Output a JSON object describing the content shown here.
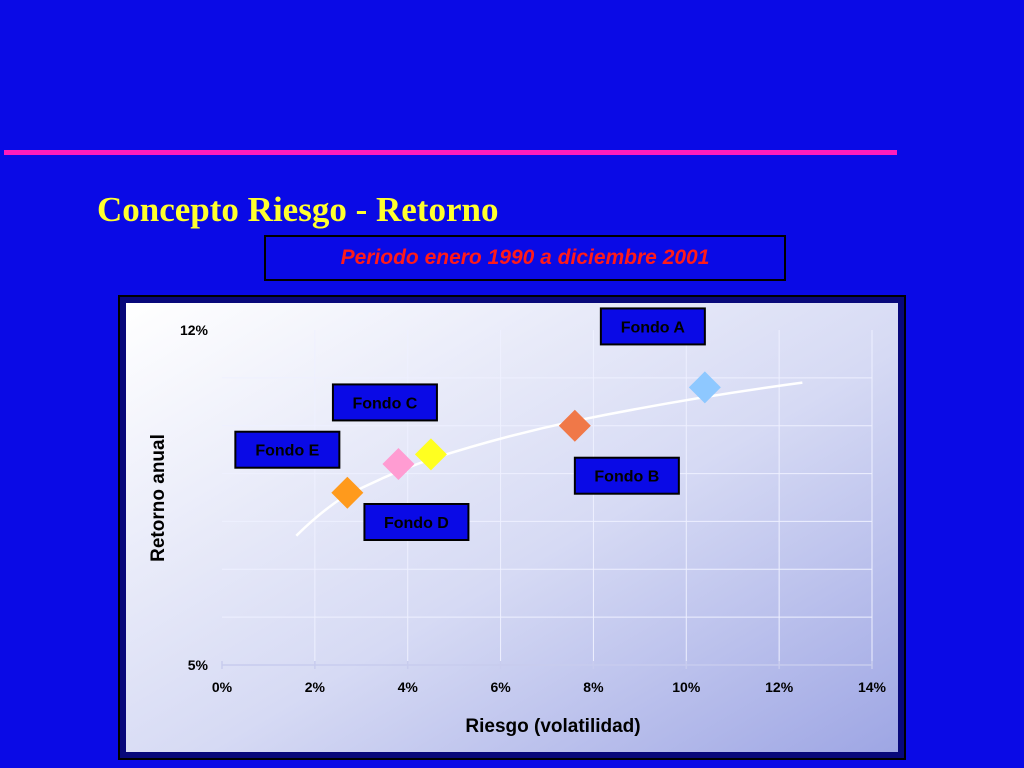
{
  "slide": {
    "title": "Concepto Riesgo - Retorno",
    "subtitle": "Periodo enero 1990 a diciembre 2001"
  },
  "colors": {
    "background": "#0a0ae6",
    "accent_line": "#ff1cbd",
    "title": "#ffff2e",
    "subtitle": "#ff1a1a",
    "label_box_fill": "#0a0ae6",
    "label_box_text": "#000000"
  },
  "chart_data": {
    "type": "scatter",
    "xlabel": "Riesgo (volatilidad)",
    "ylabel": "Retorno anual",
    "xlim": [
      0,
      14
    ],
    "ylim": [
      5,
      12
    ],
    "x_ticks": [
      "0%",
      "2%",
      "4%",
      "6%",
      "8%",
      "10%",
      "12%",
      "14%"
    ],
    "y_ticks": [
      "5%",
      "12%"
    ],
    "grid": true,
    "trendline": [
      [
        1.6,
        7.7
      ],
      [
        2.6,
        8.5
      ],
      [
        4.5,
        9.3
      ],
      [
        7.6,
        10.1
      ],
      [
        12.5,
        10.9
      ]
    ],
    "points": [
      {
        "label": "Fondo A",
        "x": 10.4,
        "y": 10.8,
        "color": "#8ec8ff"
      },
      {
        "label": "Fondo B",
        "x": 7.6,
        "y": 10.0,
        "color": "#f07848"
      },
      {
        "label": "Fondo C",
        "x": 4.5,
        "y": 9.4,
        "color": "#ffff20"
      },
      {
        "label": "Fondo D",
        "x": 3.8,
        "y": 9.2,
        "color": "#ff9cd2"
      },
      {
        "label": "Fondo E",
        "x": 2.7,
        "y": 8.6,
        "color": "#ff9a1c"
      }
    ]
  }
}
